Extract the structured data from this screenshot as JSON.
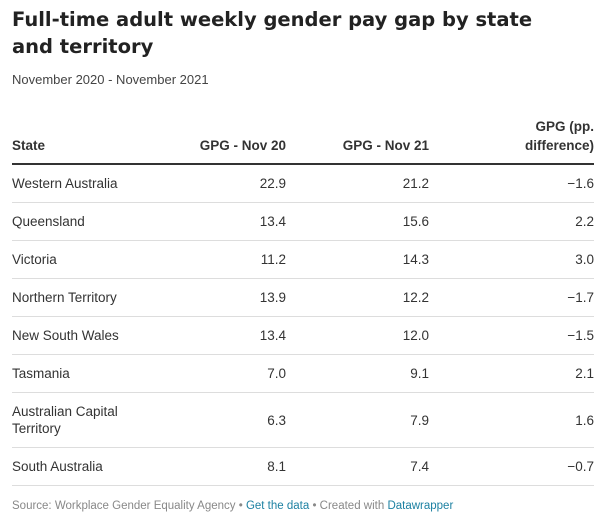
{
  "header": {
    "title": "Full-time adult weekly gender pay gap by state and territory",
    "subtitle": "November 2020 - November 2021"
  },
  "chart_data": {
    "type": "table",
    "columns": [
      "State",
      "GPG - Nov 20",
      "GPG - Nov 21",
      "GPG (pp. difference)"
    ],
    "rows": [
      {
        "state": "Western Australia",
        "nov20": "22.9",
        "nov21": "21.2",
        "diff": "−1.6"
      },
      {
        "state": "Queensland",
        "nov20": "13.4",
        "nov21": "15.6",
        "diff": "2.2"
      },
      {
        "state": "Victoria",
        "nov20": "11.2",
        "nov21": "14.3",
        "diff": "3.0"
      },
      {
        "state": "Northern Territory",
        "nov20": "13.9",
        "nov21": "12.2",
        "diff": "−1.7"
      },
      {
        "state": "New South Wales",
        "nov20": "13.4",
        "nov21": "12.0",
        "diff": "−1.5"
      },
      {
        "state": "Tasmania",
        "nov20": "7.0",
        "nov21": "9.1",
        "diff": "2.1"
      },
      {
        "state": "Australian Capital Territory",
        "nov20": "6.3",
        "nov21": "7.9",
        "diff": "1.6"
      },
      {
        "state": "South Australia",
        "nov20": "8.1",
        "nov21": "7.4",
        "diff": "−0.7"
      }
    ]
  },
  "footer": {
    "source": "Source: Workplace Gender Equality Agency",
    "separator1": " • ",
    "get_data": "Get the data",
    "separator2": " • ",
    "created_with": "Created with ",
    "tool": "Datawrapper"
  }
}
